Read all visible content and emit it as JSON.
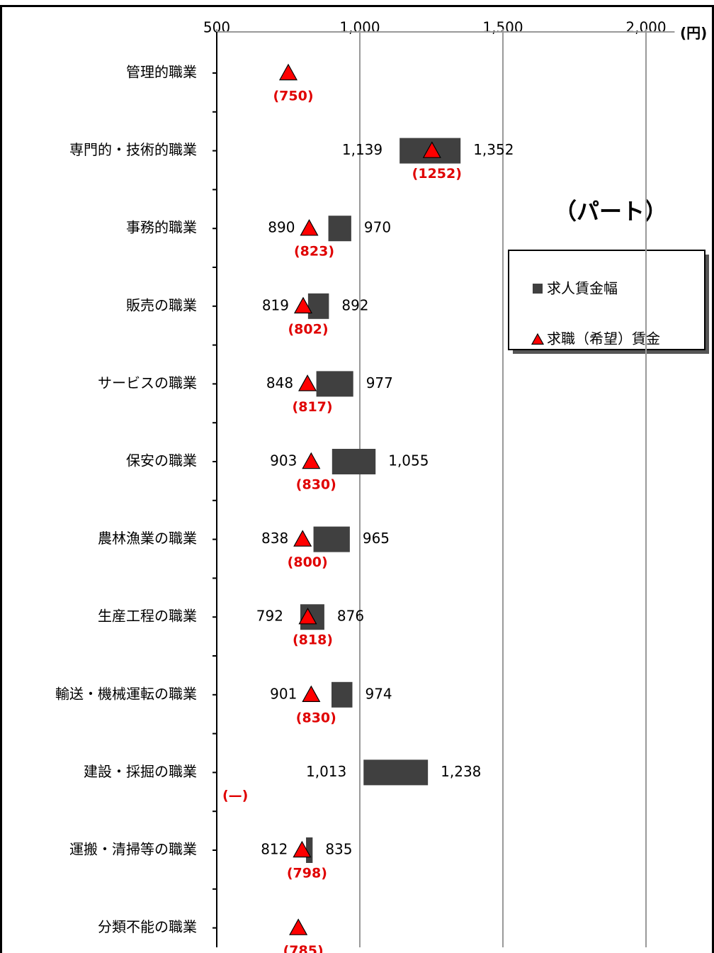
{
  "chart_data": {
    "type": "bar",
    "orientation": "horizontal",
    "annotation": "（パート）",
    "unit_label": "(円)",
    "categories": [
      "管理的職業",
      "専門的・技術的職業",
      "事務的職業",
      "販売の職業",
      "サービスの職業",
      "保安の職業",
      "農林漁業の職業",
      "生産工程の職業",
      "輸送・機械運転の職業",
      "建設・採掘の職業",
      "運搬・清掃等の職業",
      "分類不能の職業"
    ],
    "xlim": [
      500,
      2100
    ],
    "xticks": [
      500,
      {
        "value": 1000,
        "label": "1,000"
      },
      {
        "value": 1500,
        "label": "1,500"
      },
      {
        "value": 2000,
        "label": "2,000"
      }
    ],
    "grid": true,
    "series": [
      {
        "name": "求人賃金幅",
        "color": "#404040",
        "low": [
          null,
          1139,
          890,
          819,
          848,
          903,
          838,
          792,
          901,
          1013,
          812,
          null
        ],
        "high": [
          null,
          1352,
          970,
          892,
          977,
          1055,
          965,
          876,
          974,
          1238,
          835,
          null
        ],
        "low_labels": [
          null,
          "1,139",
          "890",
          "819",
          "848",
          "903",
          "838",
          "792",
          "901",
          "1,013",
          "812",
          null
        ],
        "high_labels": [
          null,
          "1,352",
          "970",
          "892",
          "977",
          "1,055",
          "965",
          "876",
          "974",
          "1,238",
          "835",
          null
        ]
      },
      {
        "name": "求職（希望）賃金",
        "color": "#ff0000",
        "values": [
          750,
          1252,
          823,
          802,
          817,
          830,
          800,
          818,
          830,
          null,
          798,
          785
        ],
        "value_labels": [
          "(750)",
          "(1252)",
          "(823)",
          "(802)",
          "(817)",
          "(830)",
          "(800)",
          "(818)",
          "(830)",
          "(—)",
          "(798)",
          "(785)"
        ]
      }
    ]
  }
}
